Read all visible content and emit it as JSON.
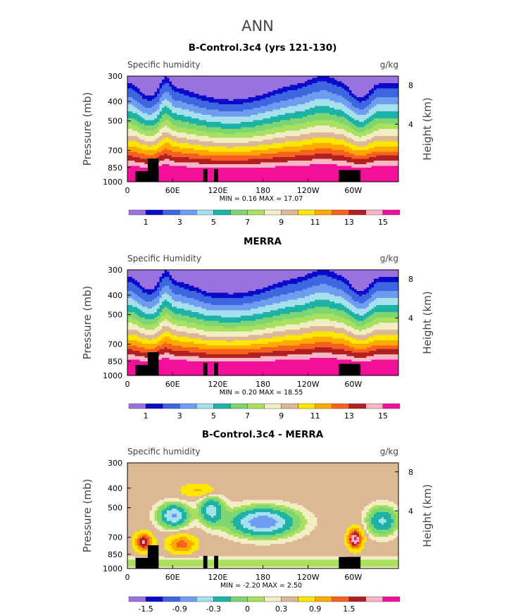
{
  "figure_title": "ANN",
  "chart_data": [
    {
      "type": "contour",
      "title": "B-Control.3c4 (yrs 121-130)",
      "variable_label": "Specific humidity",
      "units": "g/kg",
      "ylabel": "Pressure (mb)",
      "ylabel_right": "Height (km)",
      "y_ticks": [
        "300",
        "400",
        "500",
        "700",
        "850",
        "1000"
      ],
      "y_right_ticks": [
        "8",
        "4"
      ],
      "x_ticks": [
        "0",
        "60E",
        "120E",
        "180",
        "120W",
        "60W"
      ],
      "stats": "MIN =    0.16   MAX =   17.07",
      "levels": [
        0.5,
        1,
        2,
        3,
        4,
        5,
        6,
        7,
        8,
        9,
        10,
        11,
        12,
        13,
        14,
        15
      ],
      "colorbar_labels": [
        "1",
        "3",
        "5",
        "7",
        "9",
        "11",
        "13",
        "15"
      ],
      "colors": [
        "#9a72e0",
        "#0a0acb",
        "#3d66e0",
        "#6f9cf0",
        "#a6e0ec",
        "#1cb3a6",
        "#7dd672",
        "#aae060",
        "#f3edc4",
        "#dcb894",
        "#fde600",
        "#fcaa00",
        "#f86020",
        "#b02020",
        "#f8b6c4",
        "#f2109a"
      ]
    },
    {
      "type": "contour",
      "title": "MERRA",
      "variable_label": "Specific Humidity",
      "units": "g/kg",
      "ylabel": "Pressure (mb)",
      "ylabel_right": "Height (km)",
      "y_ticks": [
        "300",
        "400",
        "500",
        "700",
        "850",
        "1000"
      ],
      "y_right_ticks": [
        "8",
        "4"
      ],
      "x_ticks": [
        "0",
        "60E",
        "120E",
        "180",
        "120W",
        "60W"
      ],
      "stats": "MIN =    0.20   MAX =   18.55",
      "levels": [
        0.5,
        1,
        2,
        3,
        4,
        5,
        6,
        7,
        8,
        9,
        10,
        11,
        12,
        13,
        14,
        15
      ],
      "colorbar_labels": [
        "1",
        "3",
        "5",
        "7",
        "9",
        "11",
        "13",
        "15"
      ],
      "colors": [
        "#9a72e0",
        "#0a0acb",
        "#3d66e0",
        "#6f9cf0",
        "#a6e0ec",
        "#1cb3a6",
        "#7dd672",
        "#aae060",
        "#f3edc4",
        "#dcb894",
        "#fde600",
        "#fcaa00",
        "#f86020",
        "#b02020",
        "#f8b6c4",
        "#f2109a"
      ]
    },
    {
      "type": "contour",
      "title": "B-Control.3c4 - MERRA",
      "variable_label": "Specific humidity",
      "units": "g/kg",
      "ylabel": "Pressure (mb)",
      "ylabel_right": "Height (km)",
      "y_ticks": [
        "300",
        "400",
        "500",
        "700",
        "850",
        "1000"
      ],
      "y_right_ticks": [
        "8",
        "4"
      ],
      "x_ticks": [
        "0",
        "60E",
        "120E",
        "180",
        "120W",
        "60W"
      ],
      "stats": "MIN =   -2.20   MAX =    2.50",
      "levels": [
        -1.8,
        -1.5,
        -1.2,
        -0.9,
        -0.6,
        -0.3,
        -0.1,
        0,
        0.1,
        0.3,
        0.6,
        0.9,
        1.2,
        1.5,
        1.8
      ],
      "colorbar_labels": [
        "-1.5",
        "-0.9",
        "-0.3",
        "0",
        "0.3",
        "0.9",
        "1.5"
      ],
      "colors": [
        "#9a72e0",
        "#0a0acb",
        "#3d66e0",
        "#6f9cf0",
        "#a6e0ec",
        "#1cb3a6",
        "#7dd672",
        "#aae060",
        "#f3edc4",
        "#dcb894",
        "#fde600",
        "#fcaa00",
        "#f86020",
        "#b02020",
        "#f8b6c4",
        "#f2109a"
      ]
    }
  ]
}
